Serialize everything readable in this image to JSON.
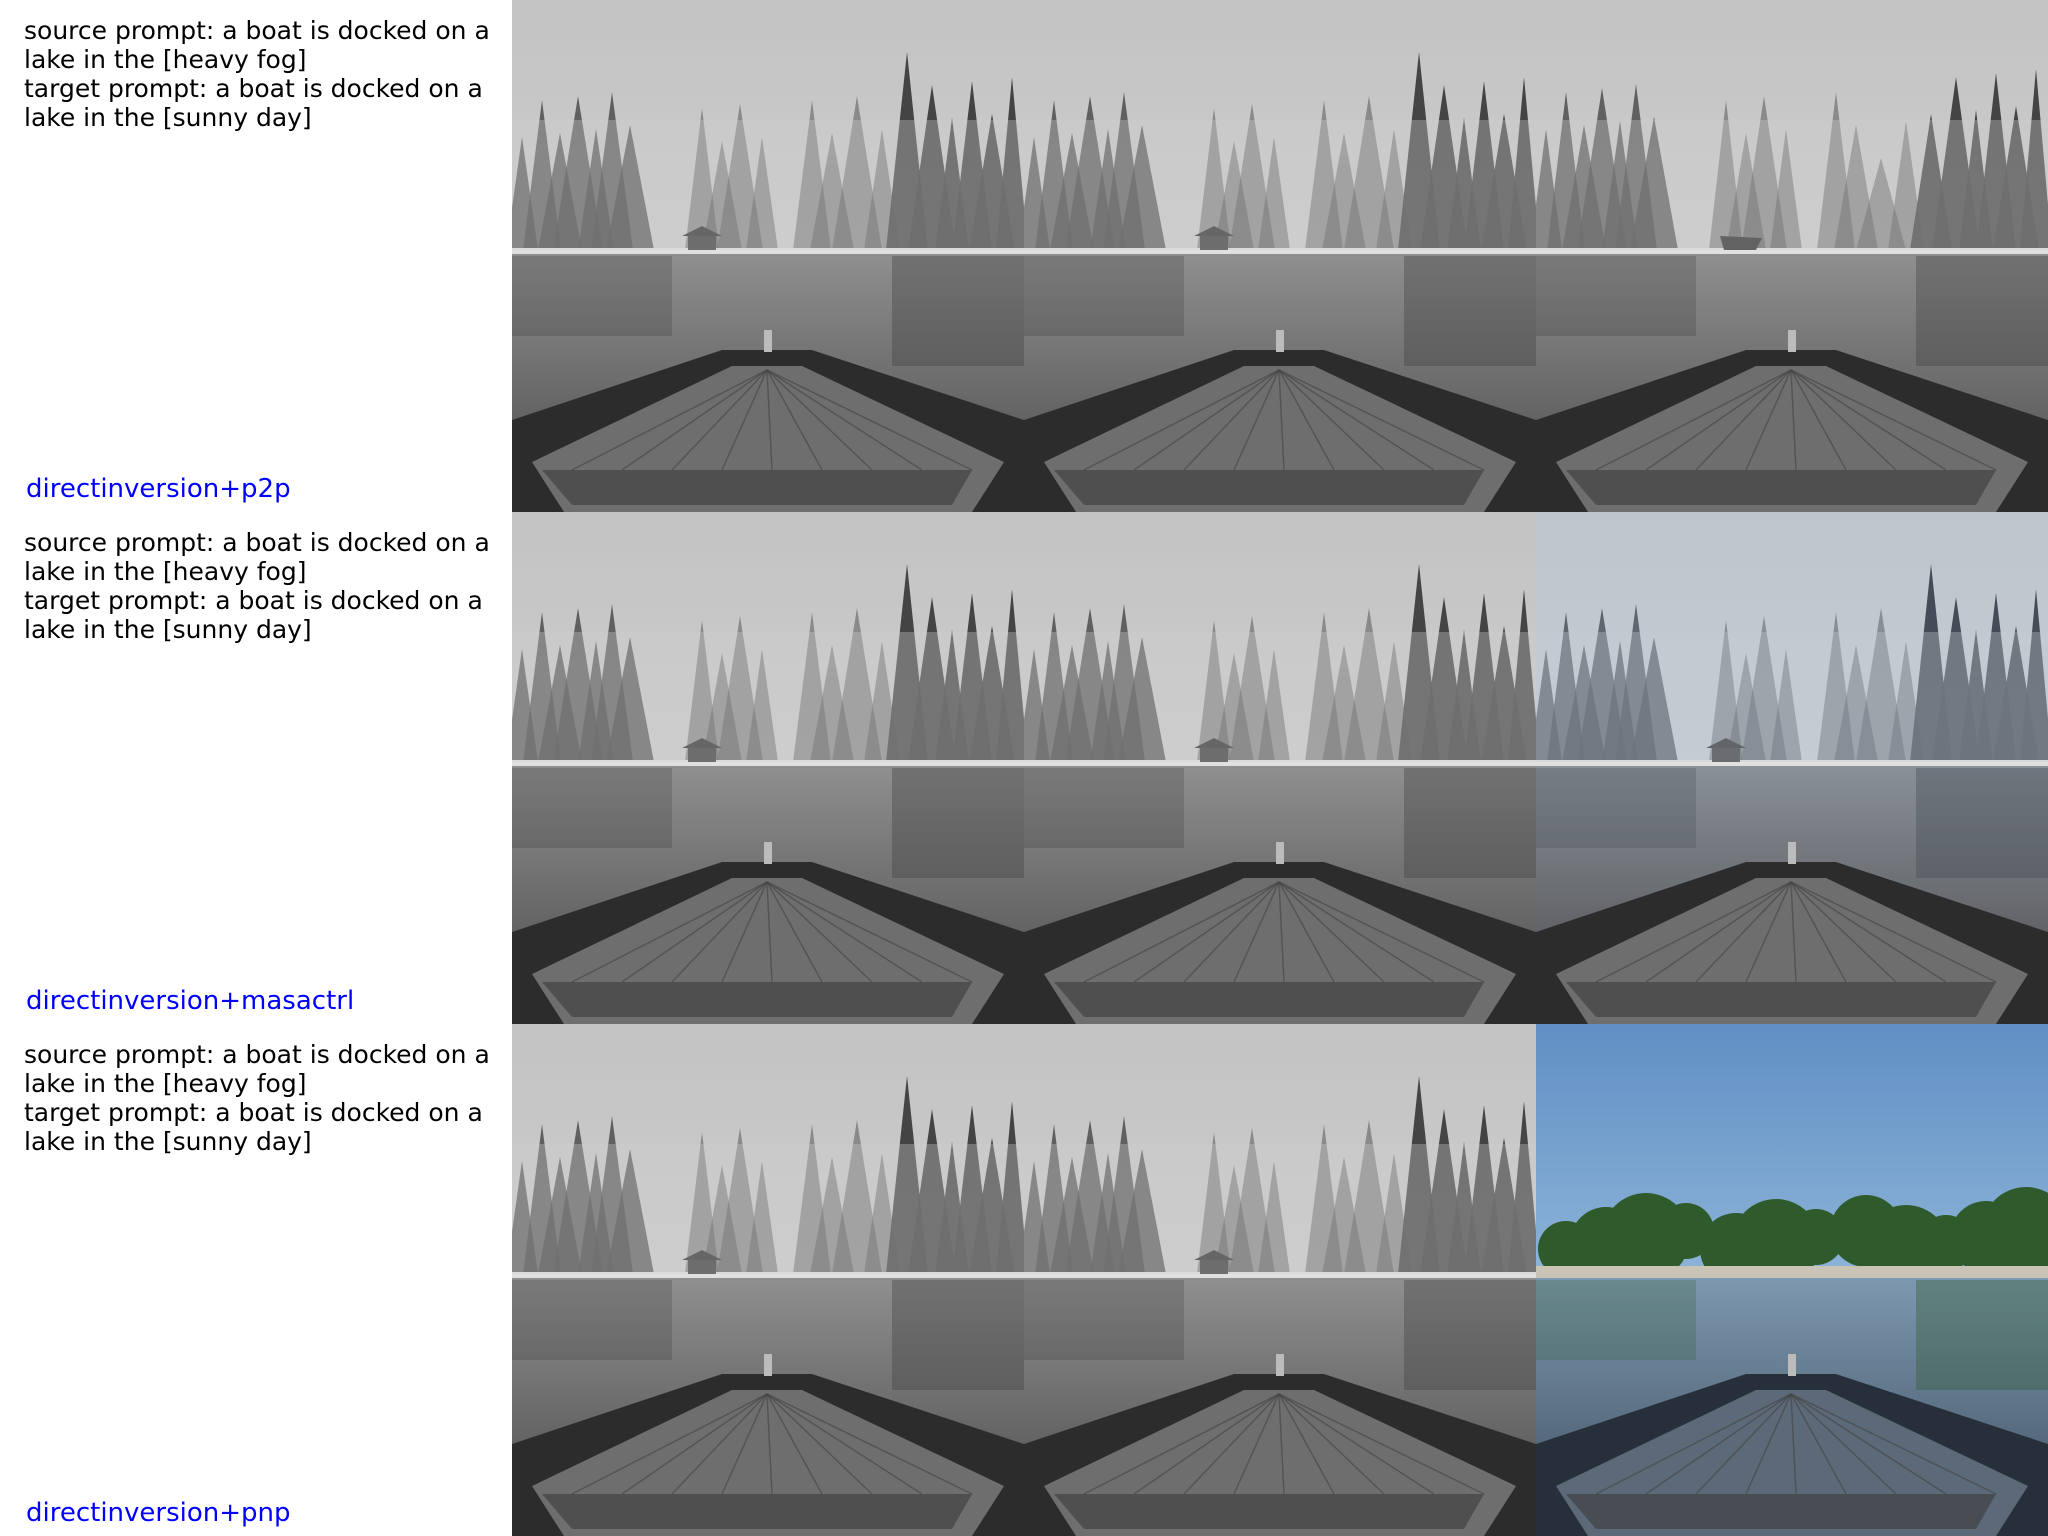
{
  "rows": [
    {
      "source_prompt": "source prompt: a boat is docked on a lake in the [heavy fog]",
      "target_prompt": "target prompt: a boat is docked on a lake in the [sunny day]",
      "method": "directinversion+p2p",
      "images": [
        {
          "icon": "foggy-lake-boat-image",
          "scene": "fog"
        },
        {
          "icon": "foggy-lake-boat-image",
          "scene": "fog"
        },
        {
          "icon": "foggy-lake-boat-image",
          "scene": "fog-boat"
        }
      ]
    },
    {
      "source_prompt": "source prompt: a boat is docked on a lake in the [heavy fog]",
      "target_prompt": "target prompt: a boat is docked on a lake in the [sunny day]",
      "method": "directinversion+masactrl",
      "images": [
        {
          "icon": "foggy-lake-boat-image",
          "scene": "fog"
        },
        {
          "icon": "foggy-lake-boat-image",
          "scene": "fog"
        },
        {
          "icon": "foggy-lake-boat-image",
          "scene": "fog-blue"
        }
      ]
    },
    {
      "source_prompt": "source prompt: a boat is docked on a lake in the [heavy fog]",
      "target_prompt": "target prompt: a boat is docked on a lake in the [sunny day]",
      "method": "directinversion+pnp",
      "images": [
        {
          "icon": "foggy-lake-boat-image",
          "scene": "fog"
        },
        {
          "icon": "foggy-lake-boat-image",
          "scene": "fog"
        },
        {
          "icon": "sunny-lake-boat-image",
          "scene": "sunny"
        }
      ]
    }
  ],
  "colors": {
    "method_label": "#0000ff",
    "prompt_text": "#000000",
    "fog_sky": "#c9c9c9",
    "sunny_sky": "#7fa7cf"
  }
}
